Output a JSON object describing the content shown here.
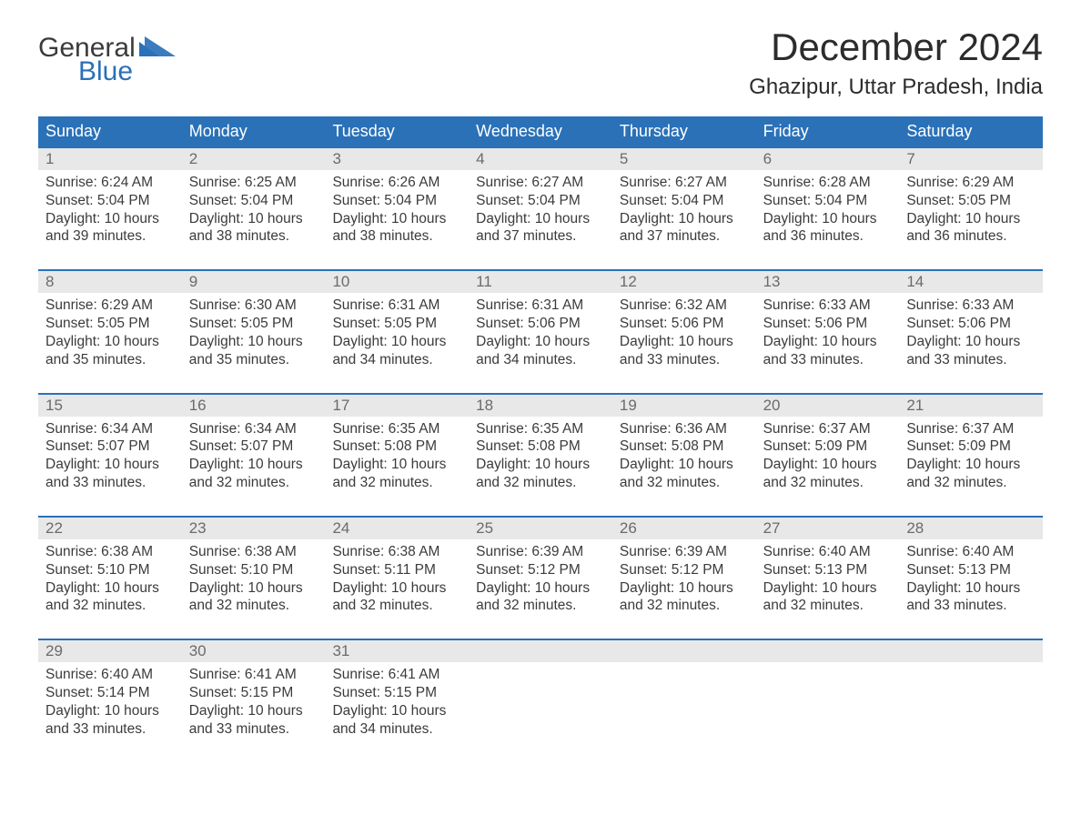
{
  "brand": {
    "word1": "General",
    "word2": "Blue",
    "tri_color": "#2a71b8"
  },
  "title": "December 2024",
  "subtitle": "Ghazipur, Uttar Pradesh, India",
  "colors": {
    "header_bg": "#2a71b8",
    "header_text": "#ffffff",
    "week_border": "#2a71b8",
    "daynum_bg": "#e8e8e8",
    "daynum_text": "#6b6b6b",
    "body_text": "#3b3b3b",
    "page_bg": "#ffffff"
  },
  "day_header_fontsize": 18,
  "daynum_fontsize": 17,
  "body_fontsize": 15.5,
  "title_fontsize": 42,
  "subtitle_fontsize": 24,
  "columns": [
    "Sunday",
    "Monday",
    "Tuesday",
    "Wednesday",
    "Thursday",
    "Friday",
    "Saturday"
  ],
  "weeks": [
    [
      {
        "n": "1",
        "sunrise": "6:24 AM",
        "sunset": "5:04 PM",
        "daylight": "10 hours and 39 minutes."
      },
      {
        "n": "2",
        "sunrise": "6:25 AM",
        "sunset": "5:04 PM",
        "daylight": "10 hours and 38 minutes."
      },
      {
        "n": "3",
        "sunrise": "6:26 AM",
        "sunset": "5:04 PM",
        "daylight": "10 hours and 38 minutes."
      },
      {
        "n": "4",
        "sunrise": "6:27 AM",
        "sunset": "5:04 PM",
        "daylight": "10 hours and 37 minutes."
      },
      {
        "n": "5",
        "sunrise": "6:27 AM",
        "sunset": "5:04 PM",
        "daylight": "10 hours and 37 minutes."
      },
      {
        "n": "6",
        "sunrise": "6:28 AM",
        "sunset": "5:04 PM",
        "daylight": "10 hours and 36 minutes."
      },
      {
        "n": "7",
        "sunrise": "6:29 AM",
        "sunset": "5:05 PM",
        "daylight": "10 hours and 36 minutes."
      }
    ],
    [
      {
        "n": "8",
        "sunrise": "6:29 AM",
        "sunset": "5:05 PM",
        "daylight": "10 hours and 35 minutes."
      },
      {
        "n": "9",
        "sunrise": "6:30 AM",
        "sunset": "5:05 PM",
        "daylight": "10 hours and 35 minutes."
      },
      {
        "n": "10",
        "sunrise": "6:31 AM",
        "sunset": "5:05 PM",
        "daylight": "10 hours and 34 minutes."
      },
      {
        "n": "11",
        "sunrise": "6:31 AM",
        "sunset": "5:06 PM",
        "daylight": "10 hours and 34 minutes."
      },
      {
        "n": "12",
        "sunrise": "6:32 AM",
        "sunset": "5:06 PM",
        "daylight": "10 hours and 33 minutes."
      },
      {
        "n": "13",
        "sunrise": "6:33 AM",
        "sunset": "5:06 PM",
        "daylight": "10 hours and 33 minutes."
      },
      {
        "n": "14",
        "sunrise": "6:33 AM",
        "sunset": "5:06 PM",
        "daylight": "10 hours and 33 minutes."
      }
    ],
    [
      {
        "n": "15",
        "sunrise": "6:34 AM",
        "sunset": "5:07 PM",
        "daylight": "10 hours and 33 minutes."
      },
      {
        "n": "16",
        "sunrise": "6:34 AM",
        "sunset": "5:07 PM",
        "daylight": "10 hours and 32 minutes."
      },
      {
        "n": "17",
        "sunrise": "6:35 AM",
        "sunset": "5:08 PM",
        "daylight": "10 hours and 32 minutes."
      },
      {
        "n": "18",
        "sunrise": "6:35 AM",
        "sunset": "5:08 PM",
        "daylight": "10 hours and 32 minutes."
      },
      {
        "n": "19",
        "sunrise": "6:36 AM",
        "sunset": "5:08 PM",
        "daylight": "10 hours and 32 minutes."
      },
      {
        "n": "20",
        "sunrise": "6:37 AM",
        "sunset": "5:09 PM",
        "daylight": "10 hours and 32 minutes."
      },
      {
        "n": "21",
        "sunrise": "6:37 AM",
        "sunset": "5:09 PM",
        "daylight": "10 hours and 32 minutes."
      }
    ],
    [
      {
        "n": "22",
        "sunrise": "6:38 AM",
        "sunset": "5:10 PM",
        "daylight": "10 hours and 32 minutes."
      },
      {
        "n": "23",
        "sunrise": "6:38 AM",
        "sunset": "5:10 PM",
        "daylight": "10 hours and 32 minutes."
      },
      {
        "n": "24",
        "sunrise": "6:38 AM",
        "sunset": "5:11 PM",
        "daylight": "10 hours and 32 minutes."
      },
      {
        "n": "25",
        "sunrise": "6:39 AM",
        "sunset": "5:12 PM",
        "daylight": "10 hours and 32 minutes."
      },
      {
        "n": "26",
        "sunrise": "6:39 AM",
        "sunset": "5:12 PM",
        "daylight": "10 hours and 32 minutes."
      },
      {
        "n": "27",
        "sunrise": "6:40 AM",
        "sunset": "5:13 PM",
        "daylight": "10 hours and 32 minutes."
      },
      {
        "n": "28",
        "sunrise": "6:40 AM",
        "sunset": "5:13 PM",
        "daylight": "10 hours and 33 minutes."
      }
    ],
    [
      {
        "n": "29",
        "sunrise": "6:40 AM",
        "sunset": "5:14 PM",
        "daylight": "10 hours and 33 minutes."
      },
      {
        "n": "30",
        "sunrise": "6:41 AM",
        "sunset": "5:15 PM",
        "daylight": "10 hours and 33 minutes."
      },
      {
        "n": "31",
        "sunrise": "6:41 AM",
        "sunset": "5:15 PM",
        "daylight": "10 hours and 34 minutes."
      },
      {
        "n": "",
        "sunrise": "",
        "sunset": "",
        "daylight": ""
      },
      {
        "n": "",
        "sunrise": "",
        "sunset": "",
        "daylight": ""
      },
      {
        "n": "",
        "sunrise": "",
        "sunset": "",
        "daylight": ""
      },
      {
        "n": "",
        "sunrise": "",
        "sunset": "",
        "daylight": ""
      }
    ]
  ],
  "labels": {
    "sunrise": "Sunrise:",
    "sunset": "Sunset:",
    "daylight": "Daylight:"
  }
}
